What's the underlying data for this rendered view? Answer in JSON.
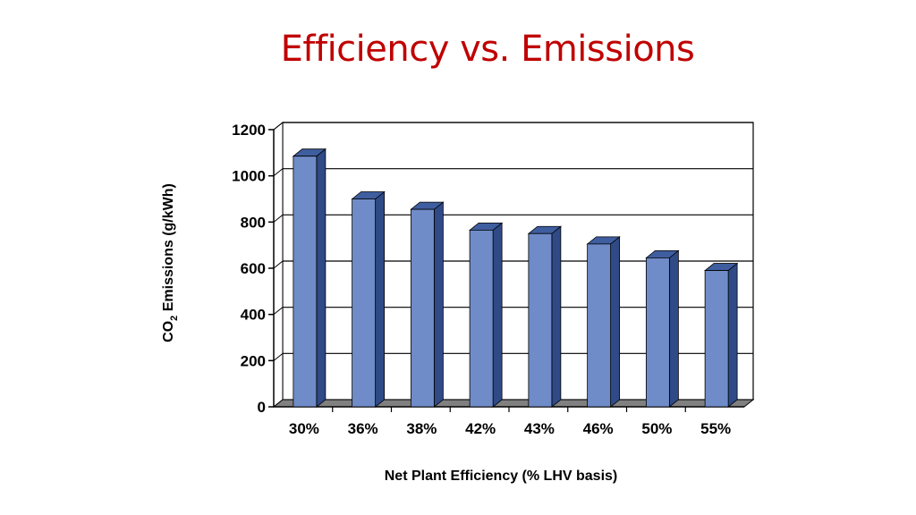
{
  "slide": {
    "title": "Efficiency vs. Emissions"
  },
  "colors": {
    "title": "#c00000",
    "bar_front": "#6f8cc8",
    "bar_side": "#2f4a86",
    "bar_top": "#3f5ea0",
    "floor": "#808080"
  },
  "chart_data": {
    "type": "bar",
    "title": "",
    "xlabel": "Net Plant Efficiency (% LHV basis)",
    "ylabel_main": "CO",
    "ylabel_sub": "2",
    "ylabel_rest": " Emissions (g/kWh)",
    "categories": [
      "30%",
      "36%",
      "38%",
      "42%",
      "43%",
      "46%",
      "50%",
      "55%"
    ],
    "values": [
      1085,
      900,
      855,
      765,
      750,
      705,
      645,
      590
    ],
    "ylim": [
      0,
      1200
    ],
    "yticks": [
      0,
      200,
      400,
      600,
      800,
      1000,
      1200
    ],
    "grid": true,
    "style": "3d"
  }
}
